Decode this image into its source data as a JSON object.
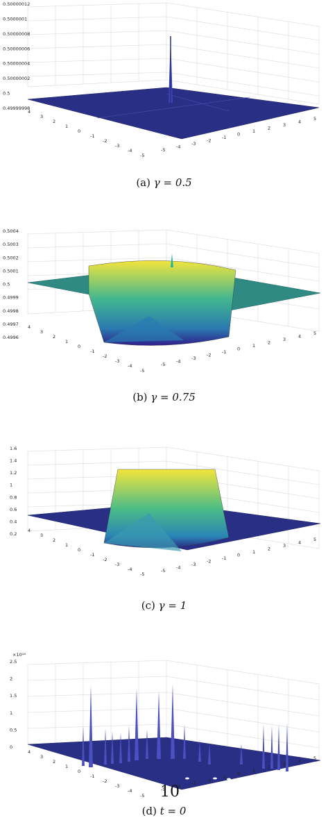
{
  "figure": {
    "panels": [
      {
        "id": "a",
        "caption_prefix": "(a)",
        "caption_math": "γ = 0.5",
        "z_ticks": [
          "0.50000012",
          "0.5000001",
          "0.50000008",
          "0.50000006",
          "0.50000004",
          "0.50000002",
          "0.5",
          "0.49999998"
        ],
        "x_ticks": [
          "-5",
          "-4",
          "-3",
          "-2",
          "-1",
          "0",
          "1",
          "2",
          "3",
          "4",
          "5"
        ],
        "y_ticks": [
          "4",
          "3",
          "2",
          "1",
          "0",
          "-1",
          "-2",
          "-3",
          "-4",
          "-5"
        ]
      },
      {
        "id": "b",
        "caption_prefix": "(b)",
        "caption_math": "γ = 0.75",
        "z_ticks": [
          "0.5004",
          "0.5003",
          "0.5002",
          "0.5001",
          "0.5",
          "0.4999",
          "0.4998",
          "0.4997",
          "0.4996"
        ],
        "x_ticks": [
          "-5",
          "-4",
          "-3",
          "-2",
          "-1",
          "0",
          "1",
          "2",
          "3",
          "4",
          "5"
        ],
        "y_ticks": [
          "4",
          "3",
          "2",
          "1",
          "0",
          "-1",
          "-2",
          "-3",
          "-4",
          "-5"
        ]
      },
      {
        "id": "c",
        "caption_prefix": "(c)",
        "caption_math": "γ = 1",
        "z_ticks": [
          "1.6",
          "1.4",
          "1.2",
          "1",
          "0.8",
          "0.6",
          "0.4",
          "0.2"
        ],
        "x_ticks": [
          "-5",
          "-4",
          "-3",
          "-2",
          "-1",
          "0",
          "1",
          "2",
          "3",
          "4",
          "5"
        ],
        "y_ticks": [
          "4",
          "3",
          "2",
          "1",
          "0",
          "-1",
          "-2",
          "-3",
          "-4",
          "-5"
        ]
      },
      {
        "id": "d",
        "caption_prefix": "(d)",
        "caption_math": "t = 0",
        "z_multiplier": "×10¹⁶",
        "z_ticks": [
          "2.5",
          "2",
          "1.5",
          "1",
          "0.5",
          "0"
        ],
        "x_ticks": [
          "-5",
          "-4",
          "-3",
          "-2",
          "-1",
          "0",
          "1",
          "2",
          "3",
          "4",
          "5"
        ],
        "y_ticks": [
          "4",
          "3",
          "2",
          "1",
          "0",
          "-1",
          "-2",
          "-3",
          "-4",
          "-5"
        ],
        "overlay_label": "10"
      }
    ],
    "colors": {
      "surface_low": "#2a2f86",
      "surface_mid": "#1fa59a",
      "surface_high": "#f0e33a",
      "flat_teal": "#2e8a83",
      "grid": "#d8d8d8"
    }
  }
}
